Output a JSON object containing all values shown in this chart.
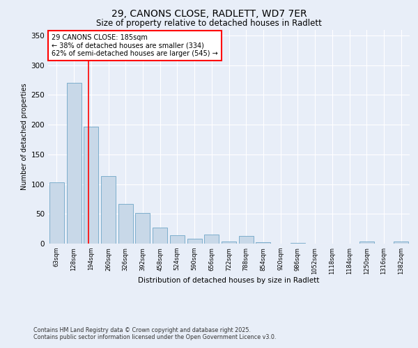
{
  "title_line1": "29, CANONS CLOSE, RADLETT, WD7 7ER",
  "title_line2": "Size of property relative to detached houses in Radlett",
  "xlabel": "Distribution of detached houses by size in Radlett",
  "ylabel": "Number of detached properties",
  "categories": [
    "63sqm",
    "128sqm",
    "194sqm",
    "260sqm",
    "326sqm",
    "392sqm",
    "458sqm",
    "524sqm",
    "590sqm",
    "656sqm",
    "722sqm",
    "788sqm",
    "854sqm",
    "920sqm",
    "986sqm",
    "1052sqm",
    "1118sqm",
    "1184sqm",
    "1250sqm",
    "1316sqm",
    "1382sqm"
  ],
  "values": [
    103,
    271,
    197,
    113,
    67,
    52,
    27,
    14,
    8,
    15,
    3,
    13,
    2,
    0,
    1,
    0,
    0,
    0,
    4,
    0,
    3
  ],
  "bar_color": "#c8d8e8",
  "bar_edge_color": "#5a9abf",
  "vline_x_index": 2,
  "vline_color": "red",
  "annotation_text": "29 CANONS CLOSE: 185sqm\n← 38% of detached houses are smaller (334)\n62% of semi-detached houses are larger (545) →",
  "annotation_box_color": "white",
  "annotation_box_edge": "red",
  "ylim": [
    0,
    360
  ],
  "yticks": [
    0,
    50,
    100,
    150,
    200,
    250,
    300,
    350
  ],
  "background_color": "#e8eef8",
  "footer_line1": "Contains HM Land Registry data © Crown copyright and database right 2025.",
  "footer_line2": "Contains public sector information licensed under the Open Government Licence v3.0."
}
